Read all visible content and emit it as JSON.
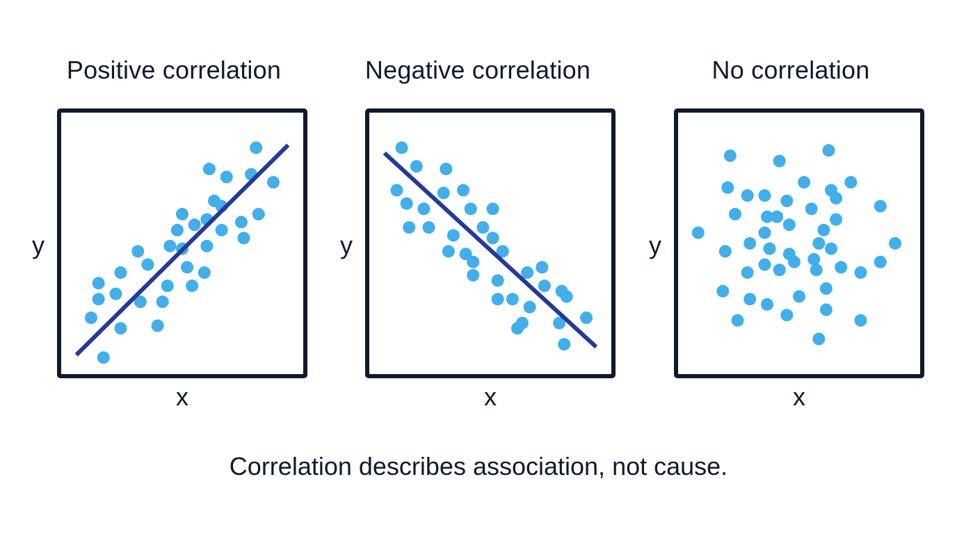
{
  "caption": "Correlation describes association, not cause.",
  "colors": {
    "frame": "#0f1a2e",
    "point": "#42aeea",
    "trend_line": "#243a94",
    "background": "#ffffff"
  },
  "chart_data": [
    {
      "type": "scatter",
      "title": "Positive correlation",
      "xlabel": "x",
      "ylabel": "y",
      "xlim": [
        0,
        10
      ],
      "ylim": [
        0,
        10
      ],
      "grid": false,
      "points": [
        [
          1.8,
          0.7
        ],
        [
          1.3,
          2.2
        ],
        [
          1.6,
          2.9
        ],
        [
          1.6,
          3.5
        ],
        [
          2.5,
          1.8
        ],
        [
          2.3,
          3.1
        ],
        [
          2.5,
          3.9
        ],
        [
          3.3,
          2.8
        ],
        [
          3.6,
          4.2
        ],
        [
          3.2,
          4.7
        ],
        [
          4.0,
          1.9
        ],
        [
          4.2,
          2.8
        ],
        [
          4.4,
          3.4
        ],
        [
          4.5,
          4.9
        ],
        [
          4.8,
          5.5
        ],
        [
          5.0,
          6.1
        ],
        [
          5.2,
          4.1
        ],
        [
          5.4,
          3.4
        ],
        [
          5.0,
          4.8
        ],
        [
          5.5,
          5.7
        ],
        [
          6.0,
          5.9
        ],
        [
          6.0,
          4.9
        ],
        [
          5.9,
          3.9
        ],
        [
          6.1,
          7.8
        ],
        [
          6.3,
          6.6
        ],
        [
          6.6,
          6.4
        ],
        [
          6.8,
          7.5
        ],
        [
          6.6,
          5.5
        ],
        [
          7.4,
          5.8
        ],
        [
          7.5,
          5.2
        ],
        [
          7.8,
          7.6
        ],
        [
          8.0,
          8.6
        ],
        [
          8.1,
          6.1
        ],
        [
          8.7,
          7.3
        ]
      ],
      "trend_line": [
        [
          0.7,
          0.8
        ],
        [
          9.3,
          8.7
        ]
      ]
    },
    {
      "type": "scatter",
      "title": "Negative correlation",
      "xlabel": "x",
      "ylabel": "y",
      "xlim": [
        0,
        10
      ],
      "ylim": [
        0,
        10
      ],
      "grid": false,
      "points": [
        [
          1.4,
          8.6
        ],
        [
          2.0,
          7.9
        ],
        [
          1.2,
          7.0
        ],
        [
          1.6,
          6.5
        ],
        [
          2.3,
          6.3
        ],
        [
          1.7,
          5.6
        ],
        [
          2.5,
          5.6
        ],
        [
          3.2,
          7.8
        ],
        [
          3.1,
          6.9
        ],
        [
          3.5,
          5.3
        ],
        [
          3.3,
          4.7
        ],
        [
          3.9,
          7.0
        ],
        [
          4.2,
          6.3
        ],
        [
          4.0,
          4.6
        ],
        [
          4.3,
          4.3
        ],
        [
          4.3,
          3.8
        ],
        [
          4.7,
          5.6
        ],
        [
          5.1,
          6.3
        ],
        [
          5.1,
          5.2
        ],
        [
          5.5,
          4.7
        ],
        [
          5.3,
          3.6
        ],
        [
          5.3,
          2.9
        ],
        [
          5.9,
          2.9
        ],
        [
          6.5,
          3.9
        ],
        [
          6.6,
          2.6
        ],
        [
          6.1,
          1.8
        ],
        [
          6.3,
          2.0
        ],
        [
          7.1,
          4.1
        ],
        [
          7.2,
          3.4
        ],
        [
          7.8,
          2.0
        ],
        [
          7.9,
          3.2
        ],
        [
          8.0,
          1.2
        ],
        [
          8.1,
          3.0
        ],
        [
          8.9,
          2.2
        ]
      ],
      "trend_line": [
        [
          0.7,
          8.4
        ],
        [
          9.3,
          1.1
        ]
      ]
    },
    {
      "type": "scatter",
      "title": "No correlation",
      "xlabel": "x",
      "ylabel": "y",
      "xlim": [
        0,
        10
      ],
      "ylim": [
        0,
        10
      ],
      "grid": false,
      "points": [
        [
          0.9,
          5.4
        ],
        [
          2.2,
          8.3
        ],
        [
          2.1,
          7.1
        ],
        [
          2.4,
          6.1
        ],
        [
          2.0,
          4.7
        ],
        [
          1.9,
          3.2
        ],
        [
          2.5,
          2.1
        ],
        [
          2.9,
          6.8
        ],
        [
          3.0,
          5.0
        ],
        [
          2.9,
          3.9
        ],
        [
          3.0,
          2.9
        ],
        [
          3.6,
          6.8
        ],
        [
          3.7,
          6.0
        ],
        [
          3.6,
          5.4
        ],
        [
          3.8,
          4.8
        ],
        [
          3.6,
          4.2
        ],
        [
          3.7,
          2.7
        ],
        [
          4.2,
          8.1
        ],
        [
          4.1,
          6.0
        ],
        [
          4.2,
          4.0
        ],
        [
          4.5,
          6.6
        ],
        [
          4.6,
          5.7
        ],
        [
          4.6,
          4.6
        ],
        [
          4.5,
          2.3
        ],
        [
          4.8,
          4.3
        ],
        [
          5.0,
          3.0
        ],
        [
          5.2,
          7.3
        ],
        [
          5.5,
          6.3
        ],
        [
          5.6,
          4.4
        ],
        [
          5.8,
          1.4
        ],
        [
          5.7,
          4.0
        ],
        [
          5.8,
          5.0
        ],
        [
          6.1,
          3.3
        ],
        [
          6.1,
          2.5
        ],
        [
          6.2,
          8.5
        ],
        [
          6.3,
          7.0
        ],
        [
          6.0,
          5.5
        ],
        [
          6.3,
          4.8
        ],
        [
          6.5,
          6.7
        ],
        [
          6.5,
          5.9
        ],
        [
          6.7,
          4.1
        ],
        [
          7.1,
          7.3
        ],
        [
          7.5,
          3.9
        ],
        [
          7.5,
          2.1
        ],
        [
          8.3,
          6.4
        ],
        [
          8.3,
          4.3
        ],
        [
          8.9,
          5.0
        ]
      ],
      "trend_line": null
    }
  ]
}
